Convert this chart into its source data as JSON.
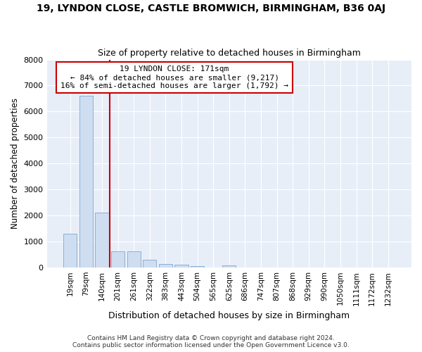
{
  "title_line1": "19, LYNDON CLOSE, CASTLE BROMWICH, BIRMINGHAM, B36 0AJ",
  "title_line2": "Size of property relative to detached houses in Birmingham",
  "xlabel": "Distribution of detached houses by size in Birmingham",
  "ylabel": "Number of detached properties",
  "footnote_line1": "Contains HM Land Registry data © Crown copyright and database right 2024.",
  "footnote_line2": "Contains public sector information licensed under the Open Government Licence v3.0.",
  "bar_labels": [
    "19sqm",
    "79sqm",
    "140sqm",
    "201sqm",
    "261sqm",
    "322sqm",
    "383sqm",
    "443sqm",
    "504sqm",
    "565sqm",
    "625sqm",
    "686sqm",
    "747sqm",
    "807sqm",
    "868sqm",
    "929sqm",
    "990sqm",
    "1050sqm",
    "1111sqm",
    "1172sqm",
    "1232sqm"
  ],
  "bar_values": [
    1300,
    6600,
    2100,
    620,
    620,
    300,
    150,
    100,
    60,
    0,
    90,
    0,
    0,
    0,
    0,
    0,
    0,
    0,
    0,
    0,
    0
  ],
  "bar_color": "#cfddf0",
  "bar_edge_color": "#8ab0d8",
  "annotation_text_line1": "19 LYNDON CLOSE: 171sqm",
  "annotation_text_line2": "← 84% of detached houses are smaller (9,217)",
  "annotation_text_line3": "16% of semi-detached houses are larger (1,792) →",
  "annotation_box_facecolor": "#ffffff",
  "annotation_box_edgecolor": "#cc0000",
  "vline_x_index": 2.5,
  "vline_color": "#cc0000",
  "bg_color": "#ffffff",
  "plot_bg_color": "#e8eef8",
  "grid_color": "#ffffff",
  "ylim": [
    0,
    8000
  ],
  "yticks": [
    0,
    1000,
    2000,
    3000,
    4000,
    5000,
    6000,
    7000,
    8000
  ]
}
